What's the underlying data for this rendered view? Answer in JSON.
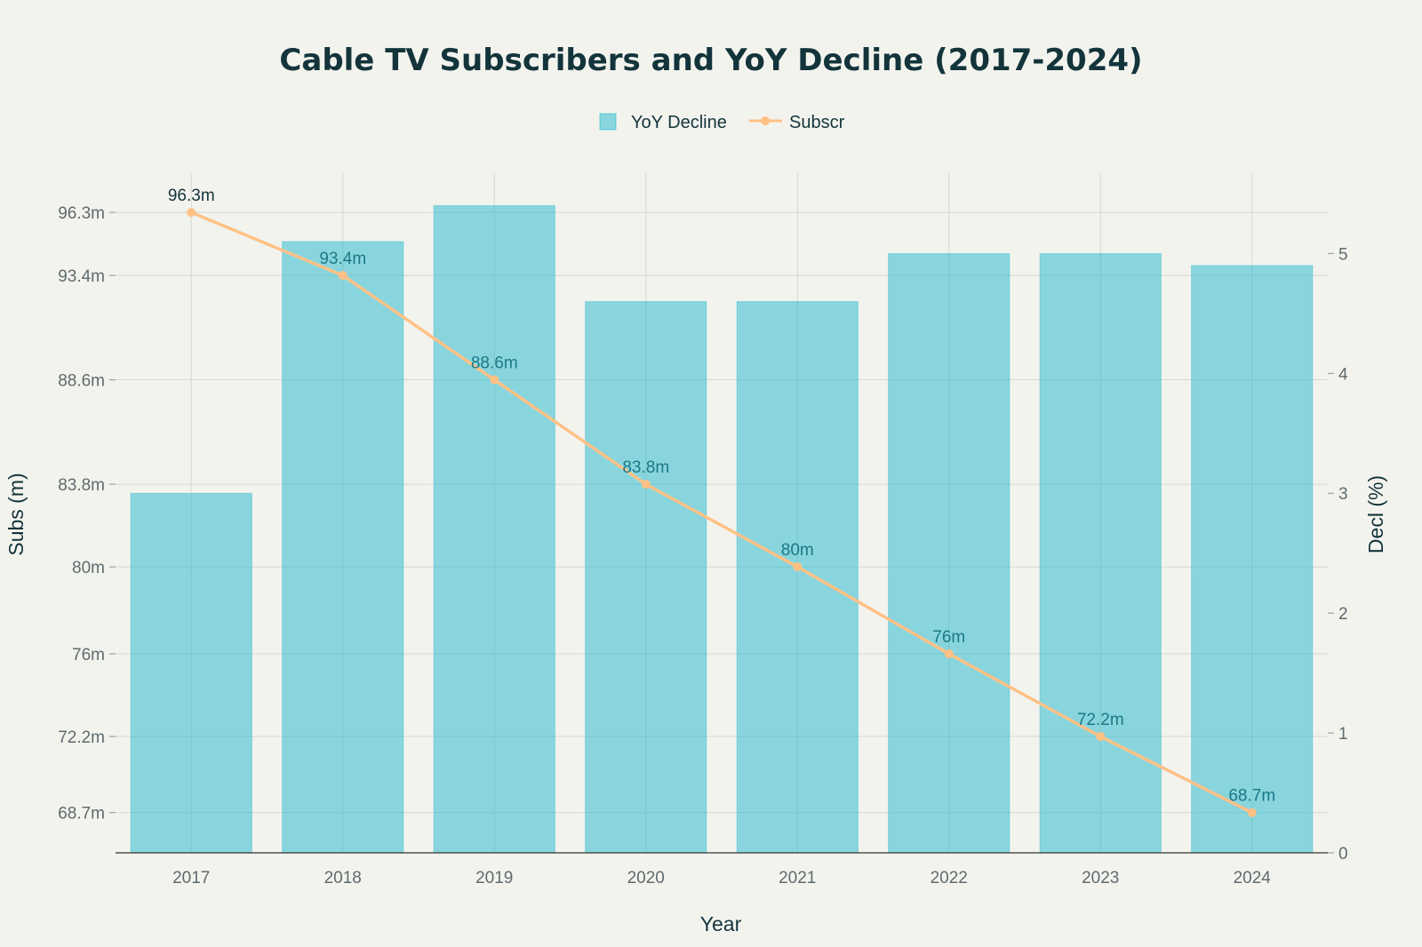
{
  "chart_data": {
    "type": "bar",
    "title": "Cable TV Subscribers and YoY Decline (2017-2024)",
    "xlabel": "Year",
    "ylabel_left": "Subs (m)",
    "ylabel_right": "Decl (%)",
    "categories": [
      "2017",
      "2018",
      "2019",
      "2020",
      "2021",
      "2022",
      "2023",
      "2024"
    ],
    "series": [
      {
        "name": "YoY Decline",
        "type": "bar",
        "axis": "right",
        "values": [
          3.0,
          5.1,
          5.4,
          4.6,
          4.6,
          5.0,
          5.0,
          4.9
        ],
        "color": "#1fb8cd"
      },
      {
        "name": "Subscr",
        "type": "line",
        "axis": "left",
        "values": [
          96.3,
          93.4,
          88.6,
          83.8,
          80.0,
          76.0,
          72.2,
          68.7
        ],
        "labels": [
          "96.3m",
          "93.4m",
          "88.6m",
          "83.8m",
          "80m",
          "76m",
          "72.2m",
          "68.7m"
        ],
        "color": "#ffc185"
      }
    ],
    "y_left": {
      "range": [
        66.85,
        98.1
      ],
      "ticks": [
        68.7,
        72.2,
        76,
        80,
        83.8,
        88.6,
        93.4,
        96.3
      ],
      "tick_labels": [
        "68.7m",
        "72.2m",
        "76m",
        "80m",
        "83.8m",
        "88.6m",
        "93.4m",
        "96.3m"
      ]
    },
    "y_right": {
      "range": [
        0,
        5.67
      ],
      "ticks": [
        0,
        1,
        2,
        3,
        4,
        5
      ],
      "tick_labels": [
        "0",
        "1",
        "2",
        "3",
        "4",
        "5"
      ]
    },
    "legend_position": "top-center",
    "grid": true
  }
}
